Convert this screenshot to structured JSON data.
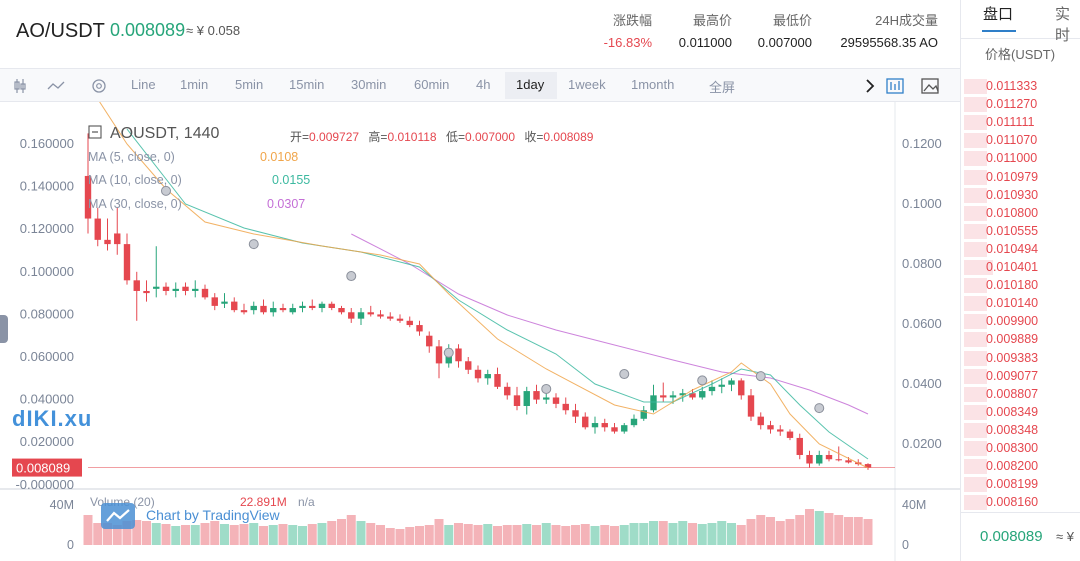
{
  "header": {
    "pair": "AO/USDT",
    "last_price": "0.008089",
    "cny_price": "≈ ¥ 0.058",
    "stats": [
      {
        "label": "涨跌幅",
        "value": "-16.83%",
        "color": "#e5474f"
      },
      {
        "label": "最高价",
        "value": "0.011000",
        "color": "#222222"
      },
      {
        "label": "最低价",
        "value": "0.007000",
        "color": "#222222"
      },
      {
        "label": "24H成交量",
        "value": "29595568.35 AO",
        "color": "#222222"
      }
    ]
  },
  "toolbar": {
    "intervals": [
      "Line",
      "1min",
      "5min",
      "15min",
      "30min",
      "60min",
      "4h",
      "1day",
      "1week",
      "1month"
    ],
    "active_interval": "1day",
    "fullscreen_label": "全屏"
  },
  "legend": {
    "symbol": "AOUSDT, 1440",
    "open_label": "开=",
    "open": "0.009727",
    "high_label": "高=",
    "high": "0.010118",
    "low_label": "低=",
    "low": "0.007000",
    "close_label": "收=",
    "close": "0.008089",
    "ma5_label": "MA (5, close, 0)",
    "ma5_value": "0.0108",
    "ma5_color": "#f0a54a",
    "ma10_label": "MA (10, close, 0)",
    "ma10_value": "0.0155",
    "ma10_color": "#3cb9a0",
    "ma30_label": "MA (30, close, 0)",
    "ma30_value": "0.0307",
    "ma30_color": "#c46fd6",
    "volume_label": "Volume (20)",
    "volume_value": "22.891M",
    "volume_na": "n/a"
  },
  "watermark": "Chart by TradingView",
  "logo_text": "dIKI.xu",
  "orderbook": {
    "tabs": [
      "盘口",
      "实时"
    ],
    "column_header": "价格(USDT)",
    "asks": [
      "0.011333",
      "0.011270",
      "0.011111",
      "0.011070",
      "0.011000",
      "0.010979",
      "0.010930",
      "0.010800",
      "0.010555",
      "0.010494",
      "0.010401",
      "0.010180",
      "0.010140",
      "0.009900",
      "0.009889",
      "0.009383",
      "0.009077",
      "0.008807",
      "0.008349",
      "0.008348",
      "0.008300",
      "0.008200",
      "0.008199",
      "0.008160"
    ],
    "ask_depth": [
      0.2,
      0.2,
      0.2,
      0.2,
      0.2,
      0.2,
      0.2,
      0.2,
      0.2,
      0.2,
      0.25,
      0.2,
      0.2,
      0.2,
      0.2,
      0.2,
      0.2,
      0.2,
      0.2,
      0.2,
      0.2,
      0.2,
      0.2,
      0.2
    ],
    "footer_price": "0.008089",
    "footer_cny": "≈ ¥"
  },
  "chart_data": {
    "type": "candlestick",
    "left_axis_ticks": [
      "0.160000",
      "0.140000",
      "0.120000",
      "0.100000",
      "0.080000",
      "0.060000",
      "0.040000",
      "0.020000",
      "-0.000000"
    ],
    "right_axis_ticks": [
      "0.1200",
      "0.1000",
      "0.0800",
      "0.0600",
      "0.0400",
      "0.0200"
    ],
    "last_price_label": "0.008089",
    "volume_axis_ticks": [
      "40M",
      "0"
    ],
    "volume_right_ticks": [
      "40M",
      "0"
    ],
    "candles": [
      [
        0.145,
        0.165,
        0.118,
        0.125
      ],
      [
        0.125,
        0.13,
        0.112,
        0.115
      ],
      [
        0.115,
        0.125,
        0.11,
        0.113
      ],
      [
        0.118,
        0.13,
        0.108,
        0.113
      ],
      [
        0.113,
        0.118,
        0.094,
        0.096
      ],
      [
        0.096,
        0.1,
        0.077,
        0.091
      ],
      [
        0.091,
        0.096,
        0.086,
        0.09
      ],
      [
        0.092,
        0.112,
        0.088,
        0.093
      ],
      [
        0.093,
        0.095,
        0.089,
        0.091
      ],
      [
        0.091,
        0.095,
        0.088,
        0.092
      ],
      [
        0.093,
        0.095,
        0.089,
        0.091
      ],
      [
        0.091,
        0.096,
        0.088,
        0.092
      ],
      [
        0.092,
        0.094,
        0.087,
        0.088
      ],
      [
        0.088,
        0.09,
        0.082,
        0.084
      ],
      [
        0.085,
        0.09,
        0.083,
        0.086
      ],
      [
        0.086,
        0.088,
        0.081,
        0.082
      ],
      [
        0.082,
        0.085,
        0.08,
        0.081
      ],
      [
        0.082,
        0.086,
        0.08,
        0.084
      ],
      [
        0.084,
        0.087,
        0.08,
        0.081
      ],
      [
        0.081,
        0.086,
        0.079,
        0.083
      ],
      [
        0.083,
        0.085,
        0.081,
        0.082
      ],
      [
        0.081,
        0.085,
        0.08,
        0.083
      ],
      [
        0.083,
        0.086,
        0.081,
        0.084
      ],
      [
        0.084,
        0.087,
        0.082,
        0.083
      ],
      [
        0.083,
        0.086,
        0.081,
        0.085
      ],
      [
        0.085,
        0.086,
        0.082,
        0.083
      ],
      [
        0.083,
        0.084,
        0.08,
        0.081
      ],
      [
        0.081,
        0.083,
        0.076,
        0.078
      ],
      [
        0.078,
        0.083,
        0.075,
        0.081
      ],
      [
        0.081,
        0.084,
        0.079,
        0.08
      ],
      [
        0.08,
        0.082,
        0.078,
        0.079
      ],
      [
        0.079,
        0.081,
        0.077,
        0.078
      ],
      [
        0.078,
        0.08,
        0.076,
        0.077
      ],
      [
        0.077,
        0.079,
        0.074,
        0.075
      ],
      [
        0.075,
        0.077,
        0.07,
        0.072
      ],
      [
        0.07,
        0.072,
        0.062,
        0.065
      ],
      [
        0.065,
        0.068,
        0.05,
        0.057
      ],
      [
        0.057,
        0.066,
        0.055,
        0.064
      ],
      [
        0.064,
        0.066,
        0.055,
        0.058
      ],
      [
        0.058,
        0.06,
        0.052,
        0.054
      ],
      [
        0.054,
        0.056,
        0.048,
        0.05
      ],
      [
        0.05,
        0.054,
        0.047,
        0.052
      ],
      [
        0.052,
        0.055,
        0.045,
        0.046
      ],
      [
        0.046,
        0.048,
        0.04,
        0.042
      ],
      [
        0.042,
        0.046,
        0.035,
        0.037
      ],
      [
        0.037,
        0.046,
        0.033,
        0.044
      ],
      [
        0.044,
        0.047,
        0.038,
        0.04
      ],
      [
        0.04,
        0.043,
        0.038,
        0.041
      ],
      [
        0.041,
        0.043,
        0.036,
        0.038
      ],
      [
        0.038,
        0.041,
        0.033,
        0.035
      ],
      [
        0.035,
        0.038,
        0.029,
        0.032
      ],
      [
        0.032,
        0.034,
        0.026,
        0.027
      ],
      [
        0.027,
        0.032,
        0.024,
        0.029
      ],
      [
        0.029,
        0.031,
        0.025,
        0.027
      ],
      [
        0.027,
        0.029,
        0.024,
        0.025
      ],
      [
        0.025,
        0.029,
        0.024,
        0.028
      ],
      [
        0.028,
        0.033,
        0.027,
        0.031
      ],
      [
        0.031,
        0.037,
        0.03,
        0.035
      ],
      [
        0.035,
        0.047,
        0.034,
        0.042
      ],
      [
        0.042,
        0.048,
        0.039,
        0.041
      ],
      [
        0.041,
        0.044,
        0.038,
        0.042
      ],
      [
        0.042,
        0.045,
        0.039,
        0.043
      ],
      [
        0.043,
        0.045,
        0.04,
        0.041
      ],
      [
        0.041,
        0.046,
        0.04,
        0.044
      ],
      [
        0.044,
        0.049,
        0.042,
        0.046
      ],
      [
        0.046,
        0.05,
        0.043,
        0.047
      ],
      [
        0.047,
        0.05,
        0.044,
        0.049
      ],
      [
        0.049,
        0.05,
        0.04,
        0.042
      ],
      [
        0.042,
        0.045,
        0.03,
        0.032
      ],
      [
        0.032,
        0.034,
        0.026,
        0.028
      ],
      [
        0.028,
        0.03,
        0.024,
        0.026
      ],
      [
        0.026,
        0.028,
        0.023,
        0.025
      ],
      [
        0.025,
        0.026,
        0.021,
        0.022
      ],
      [
        0.022,
        0.024,
        0.012,
        0.014
      ],
      [
        0.014,
        0.016,
        0.008,
        0.01
      ],
      [
        0.01,
        0.016,
        0.009,
        0.014
      ],
      [
        0.014,
        0.016,
        0.011,
        0.012
      ],
      [
        0.012,
        0.018,
        0.011,
        0.0115
      ],
      [
        0.0115,
        0.013,
        0.01,
        0.0105
      ],
      [
        0.0105,
        0.012,
        0.009,
        0.0097
      ],
      [
        0.009727,
        0.010118,
        0.007,
        0.008089
      ]
    ],
    "volume": [
      30,
      22,
      22,
      20,
      24,
      25,
      24,
      22,
      21,
      19,
      20,
      20,
      22,
      24,
      21,
      20,
      21,
      22,
      19,
      20,
      21,
      20,
      19,
      21,
      22,
      24,
      26,
      30,
      24,
      22,
      20,
      17,
      16,
      18,
      19,
      20,
      26,
      20,
      22,
      21,
      20,
      21,
      19,
      20,
      20,
      21,
      20,
      22,
      20,
      19,
      20,
      21,
      19,
      20,
      19,
      20,
      22,
      22,
      24,
      24,
      22,
      24,
      22,
      21,
      22,
      24,
      22,
      20,
      26,
      30,
      28,
      24,
      26,
      30,
      36,
      34,
      32,
      30,
      28,
      28,
      26
    ],
    "ma5": [
      [
        0.14,
        0
      ],
      [
        0.12,
        4
      ],
      [
        0.105,
        8
      ],
      [
        0.094,
        12
      ],
      [
        0.09,
        17
      ],
      [
        0.086,
        24
      ],
      [
        0.083,
        30
      ],
      [
        0.08,
        34
      ],
      [
        0.07,
        37
      ],
      [
        0.055,
        42
      ],
      [
        0.045,
        47
      ],
      [
        0.033,
        54
      ],
      [
        0.03,
        58
      ],
      [
        0.038,
        62
      ],
      [
        0.044,
        66
      ],
      [
        0.047,
        67
      ],
      [
        0.04,
        70
      ],
      [
        0.03,
        72
      ],
      [
        0.02,
        75
      ],
      [
        0.012,
        80
      ]
    ],
    "ma10": [
      [
        0.125,
        4
      ],
      [
        0.1,
        10
      ],
      [
        0.092,
        16
      ],
      [
        0.087,
        22
      ],
      [
        0.084,
        28
      ],
      [
        0.079,
        34
      ],
      [
        0.068,
        38
      ],
      [
        0.058,
        43
      ],
      [
        0.05,
        48
      ],
      [
        0.04,
        52
      ],
      [
        0.034,
        57
      ],
      [
        0.034,
        60
      ],
      [
        0.04,
        64
      ],
      [
        0.045,
        67
      ],
      [
        0.043,
        70
      ],
      [
        0.033,
        73
      ],
      [
        0.024,
        76
      ],
      [
        0.015,
        80
      ]
    ],
    "ma30": [
      [
        0.09,
        27
      ],
      [
        0.08,
        33
      ],
      [
        0.07,
        38
      ],
      [
        0.063,
        43
      ],
      [
        0.058,
        48
      ],
      [
        0.053,
        54
      ],
      [
        0.048,
        60
      ],
      [
        0.044,
        65
      ],
      [
        0.042,
        70
      ],
      [
        0.038,
        74
      ],
      [
        0.033,
        78
      ],
      [
        0.03,
        80
      ]
    ],
    "markers": [
      [
        0.138,
        8
      ],
      [
        0.113,
        17
      ],
      [
        0.098,
        27
      ],
      [
        0.062,
        37
      ],
      [
        0.045,
        47
      ],
      [
        0.052,
        55
      ],
      [
        0.049,
        63
      ],
      [
        0.051,
        69
      ],
      [
        0.036,
        75
      ]
    ]
  }
}
